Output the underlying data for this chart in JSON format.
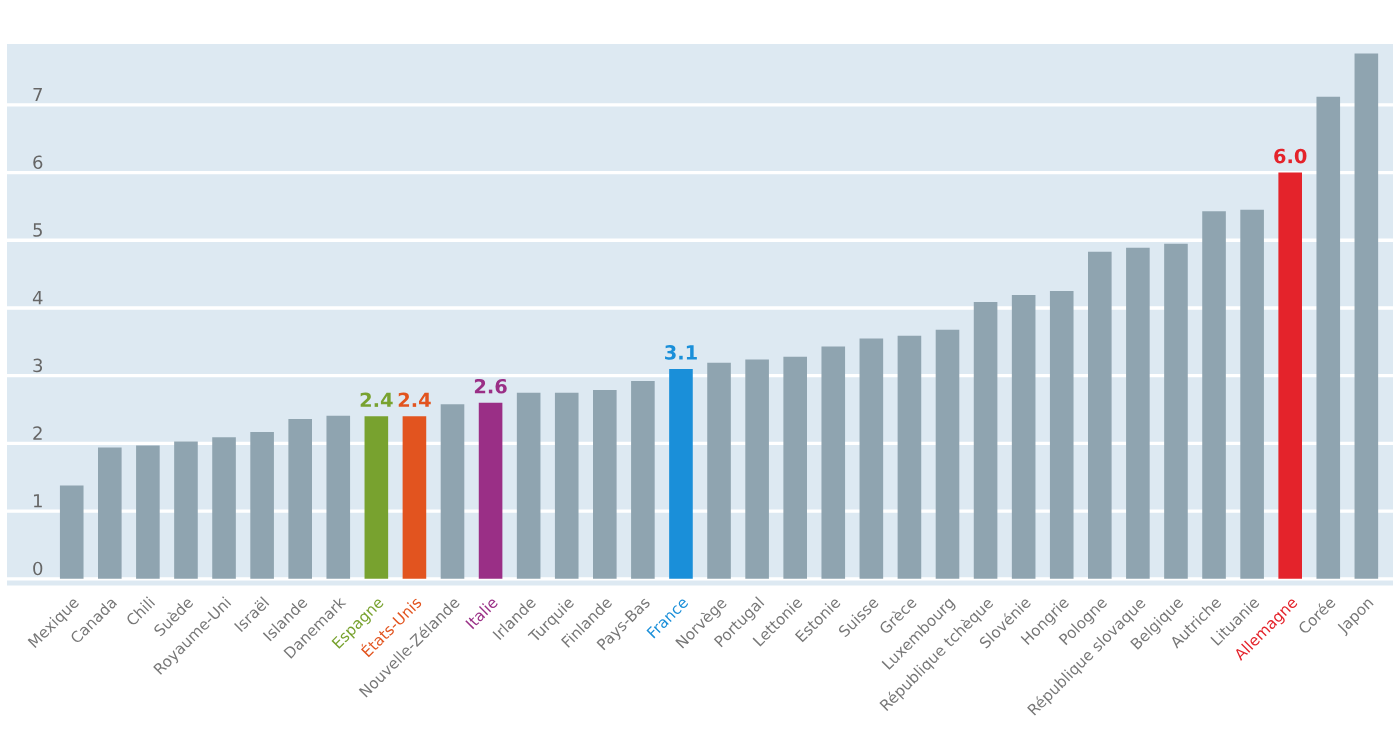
{
  "chart_data": {
    "type": "bar",
    "categories": [
      "Mexique",
      "Canada",
      "Chili",
      "Suède",
      "Royaume-Uni",
      "Israël",
      "Islande",
      "Danemark",
      "Espagne",
      "États-Unis",
      "Nouvelle-Zélande",
      "Italie",
      "Irlande",
      "Turquie",
      "Finlande",
      "Pays-Bas",
      "France",
      "Norvège",
      "Portugal",
      "Lettonie",
      "Estonie",
      "Suisse",
      "Grèce",
      "Luxembourg",
      "République tchèque",
      "Slovénie",
      "Hongrie",
      "Pologne",
      "République slovaque",
      "Belgique",
      "Autriche",
      "Lituanie",
      "Allemagne",
      "Corée",
      "Japon"
    ],
    "series": [
      {
        "color": "#8fa4b0",
        "values": [
          1.38,
          1.94,
          1.97,
          2.03,
          2.09,
          2.17,
          2.36,
          2.41,
          2.4,
          2.4,
          2.58,
          2.6,
          2.75,
          2.75,
          2.79,
          2.92,
          3.1,
          3.19,
          3.24,
          3.28,
          3.43,
          3.55,
          3.59,
          3.68,
          4.09,
          4.19,
          4.25,
          4.83,
          4.89,
          4.95,
          5.43,
          5.45,
          6.0,
          7.12,
          7.76
        ],
        "colors": [
          "#8fa4b0",
          "#8fa4b0",
          "#8fa4b0",
          "#8fa4b0",
          "#8fa4b0",
          "#8fa4b0",
          "#8fa4b0",
          "#8fa4b0",
          "#78a22f",
          "#e2541f",
          "#8fa4b0",
          "#9a2f86",
          "#8fa4b0",
          "#8fa4b0",
          "#8fa4b0",
          "#8fa4b0",
          "#1a8fd9",
          "#8fa4b0",
          "#8fa4b0",
          "#8fa4b0",
          "#8fa4b0",
          "#8fa4b0",
          "#8fa4b0",
          "#8fa4b0",
          "#8fa4b0",
          "#8fa4b0",
          "#8fa4b0",
          "#8fa4b0",
          "#8fa4b0",
          "#8fa4b0",
          "#8fa4b0",
          "#8fa4b0",
          "#e4232b",
          "#8fa4b0",
          "#8fa4b0"
        ],
        "value_labels": [
          null,
          null,
          null,
          null,
          null,
          null,
          null,
          null,
          "2.4",
          "2.4",
          null,
          "2.6",
          null,
          null,
          null,
          null,
          "3.1",
          null,
          null,
          null,
          null,
          null,
          null,
          null,
          null,
          null,
          null,
          null,
          null,
          null,
          null,
          null,
          "6.0",
          null,
          null
        ]
      }
    ],
    "ylim": [
      -0.1,
      7.9
    ],
    "yticks": [
      0,
      1,
      2,
      3,
      4,
      5,
      6,
      7
    ],
    "grid": "y",
    "legend": false
  }
}
